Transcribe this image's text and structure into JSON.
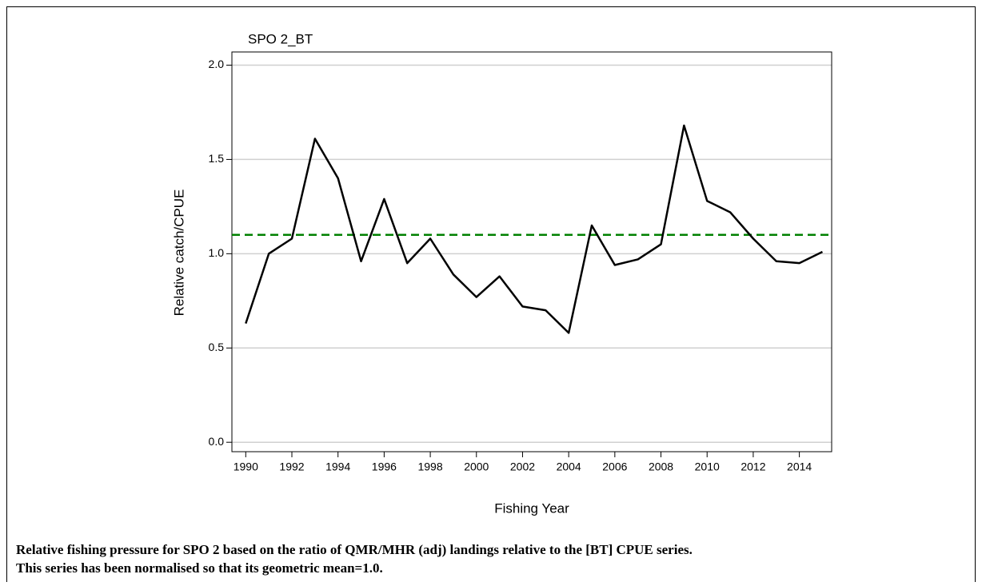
{
  "chart_data": {
    "type": "line",
    "title": "SPO 2_BT",
    "x_label": "Fishing Year",
    "y_label": "Relative catch/CPUE",
    "x": [
      1990,
      1991,
      1992,
      1993,
      1994,
      1995,
      1996,
      1997,
      1998,
      1999,
      2000,
      2001,
      2002,
      2003,
      2004,
      2005,
      2006,
      2007,
      2008,
      2009,
      2010,
      2011,
      2012,
      2013,
      2014,
      2015
    ],
    "series": [
      {
        "color": "#000000",
        "values": [
          0.63,
          1.0,
          1.08,
          1.61,
          1.4,
          0.96,
          1.29,
          0.95,
          1.08,
          0.89,
          0.77,
          0.88,
          0.72,
          0.7,
          0.58,
          1.15,
          0.94,
          0.97,
          1.05,
          1.68,
          1.28,
          1.22,
          1.08,
          0.96,
          0.95,
          1.01
        ]
      }
    ],
    "reference_line": {
      "value": 1.1,
      "color": "#008000",
      "dashed": true
    },
    "xlim": [
      1989.4,
      2015.4
    ],
    "xticks": [
      1990,
      1992,
      1994,
      1996,
      1998,
      2000,
      2002,
      2004,
      2006,
      2008,
      2010,
      2012,
      2014
    ],
    "ylim": [
      -0.05,
      2.07
    ],
    "yticks": [
      {
        "value": 0,
        "label": "0.0"
      },
      {
        "value": 0.5,
        "label": "0.5"
      },
      {
        "value": 1,
        "label": "1.0"
      },
      {
        "value": 1.5,
        "label": "1.5"
      },
      {
        "value": 2,
        "label": "2.0"
      }
    ],
    "grid": true
  },
  "caption": [
    "Relative fishing pressure for SPO 2 based on the ratio of QMR/MHR (adj) landings relative to the [BT] CPUE series.",
    "This series has been normalised so that its geometric mean=1.0."
  ]
}
